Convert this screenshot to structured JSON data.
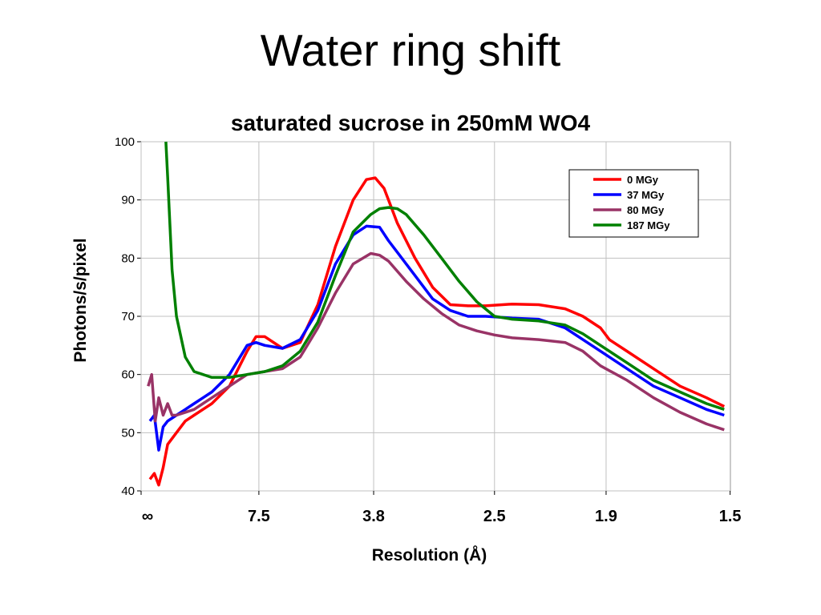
{
  "slide": {
    "title": "Water ring shift"
  },
  "chart_data": {
    "type": "line",
    "title": "saturated sucrose in 250mM WO4",
    "xlabel": "Resolution (Å)",
    "ylabel": "Photons/s/pixel",
    "ylim": [
      40,
      100
    ],
    "yticks": [
      40,
      50,
      60,
      70,
      80,
      90,
      100
    ],
    "x_scale": "reciprocal resolution",
    "xlim": [
      0,
      0.667
    ],
    "xticks": [
      {
        "value": 0,
        "label": "∞"
      },
      {
        "value": 0.1333,
        "label": "7.5"
      },
      {
        "value": 0.2632,
        "label": "3.8"
      },
      {
        "value": 0.4,
        "label": "2.5"
      },
      {
        "value": 0.5263,
        "label": "1.9"
      },
      {
        "value": 0.6667,
        "label": "1.5"
      }
    ],
    "grid": true,
    "legend_position": "top-right",
    "series": [
      {
        "name": "0 MGy",
        "color": "#ff0000",
        "x": [
          0.01,
          0.015,
          0.02,
          0.025,
          0.03,
          0.04,
          0.05,
          0.06,
          0.08,
          0.1,
          0.12,
          0.13,
          0.14,
          0.16,
          0.18,
          0.2,
          0.22,
          0.24,
          0.255,
          0.265,
          0.275,
          0.29,
          0.31,
          0.33,
          0.35,
          0.37,
          0.39,
          0.42,
          0.45,
          0.48,
          0.5,
          0.52,
          0.53,
          0.55,
          0.58,
          0.61,
          0.64,
          0.66
        ],
        "y": [
          42,
          43,
          41,
          44,
          48,
          50,
          52,
          53,
          55,
          58,
          64,
          66.5,
          66.5,
          64.5,
          65.5,
          72,
          82,
          90,
          93.5,
          93.8,
          92,
          86,
          80,
          75,
          72,
          71.8,
          71.8,
          72.1,
          72.0,
          71.3,
          70,
          68,
          66,
          64,
          61,
          58,
          56,
          54.5
        ]
      },
      {
        "name": "37 MGy",
        "color": "#0000ff",
        "x": [
          0.01,
          0.015,
          0.02,
          0.025,
          0.03,
          0.04,
          0.05,
          0.06,
          0.08,
          0.1,
          0.12,
          0.13,
          0.14,
          0.16,
          0.18,
          0.2,
          0.22,
          0.24,
          0.255,
          0.27,
          0.28,
          0.29,
          0.31,
          0.33,
          0.35,
          0.37,
          0.39,
          0.42,
          0.45,
          0.48,
          0.5,
          0.52,
          0.55,
          0.58,
          0.61,
          0.64,
          0.66
        ],
        "y": [
          52,
          53,
          47,
          51,
          52,
          53,
          54,
          55,
          57,
          60,
          65,
          65.5,
          65,
          64.5,
          66,
          71,
          79,
          84,
          85.5,
          85.3,
          83,
          81,
          77,
          73,
          71,
          70,
          70,
          69.7,
          69.5,
          68,
          66,
          64,
          61,
          58,
          56,
          54,
          53
        ]
      },
      {
        "name": "80 MGy",
        "color": "#993366",
        "x": [
          0.008,
          0.012,
          0.016,
          0.02,
          0.025,
          0.03,
          0.035,
          0.04,
          0.05,
          0.06,
          0.08,
          0.1,
          0.12,
          0.14,
          0.16,
          0.18,
          0.2,
          0.22,
          0.24,
          0.26,
          0.27,
          0.28,
          0.3,
          0.32,
          0.34,
          0.36,
          0.38,
          0.4,
          0.42,
          0.45,
          0.48,
          0.5,
          0.52,
          0.55,
          0.58,
          0.61,
          0.64,
          0.66
        ],
        "y": [
          58,
          60,
          52,
          56,
          53,
          55,
          53,
          53,
          53.5,
          54,
          56,
          58,
          60,
          60.5,
          61,
          63,
          68,
          74,
          79,
          80.8,
          80.5,
          79.5,
          76,
          73,
          70.5,
          68.5,
          67.5,
          66.8,
          66.3,
          66,
          65.5,
          64,
          61.5,
          59,
          56,
          53.5,
          51.5,
          50.5
        ]
      },
      {
        "name": "187 MGy",
        "color": "#008000",
        "x": [
          0.028,
          0.03,
          0.035,
          0.04,
          0.05,
          0.06,
          0.08,
          0.1,
          0.12,
          0.14,
          0.16,
          0.18,
          0.2,
          0.22,
          0.24,
          0.26,
          0.27,
          0.28,
          0.29,
          0.3,
          0.32,
          0.34,
          0.36,
          0.38,
          0.4,
          0.42,
          0.45,
          0.48,
          0.5,
          0.52,
          0.55,
          0.58,
          0.61,
          0.64,
          0.66
        ],
        "y": [
          100,
          94,
          78,
          70,
          63,
          60.5,
          59.5,
          59.5,
          60,
          60.5,
          61.5,
          64,
          69,
          77,
          84.5,
          87.5,
          88.5,
          88.7,
          88.5,
          87.5,
          84,
          80,
          76,
          72.5,
          70,
          69.5,
          69.2,
          68.5,
          67,
          65,
          62,
          59,
          57,
          55,
          54
        ]
      }
    ]
  }
}
